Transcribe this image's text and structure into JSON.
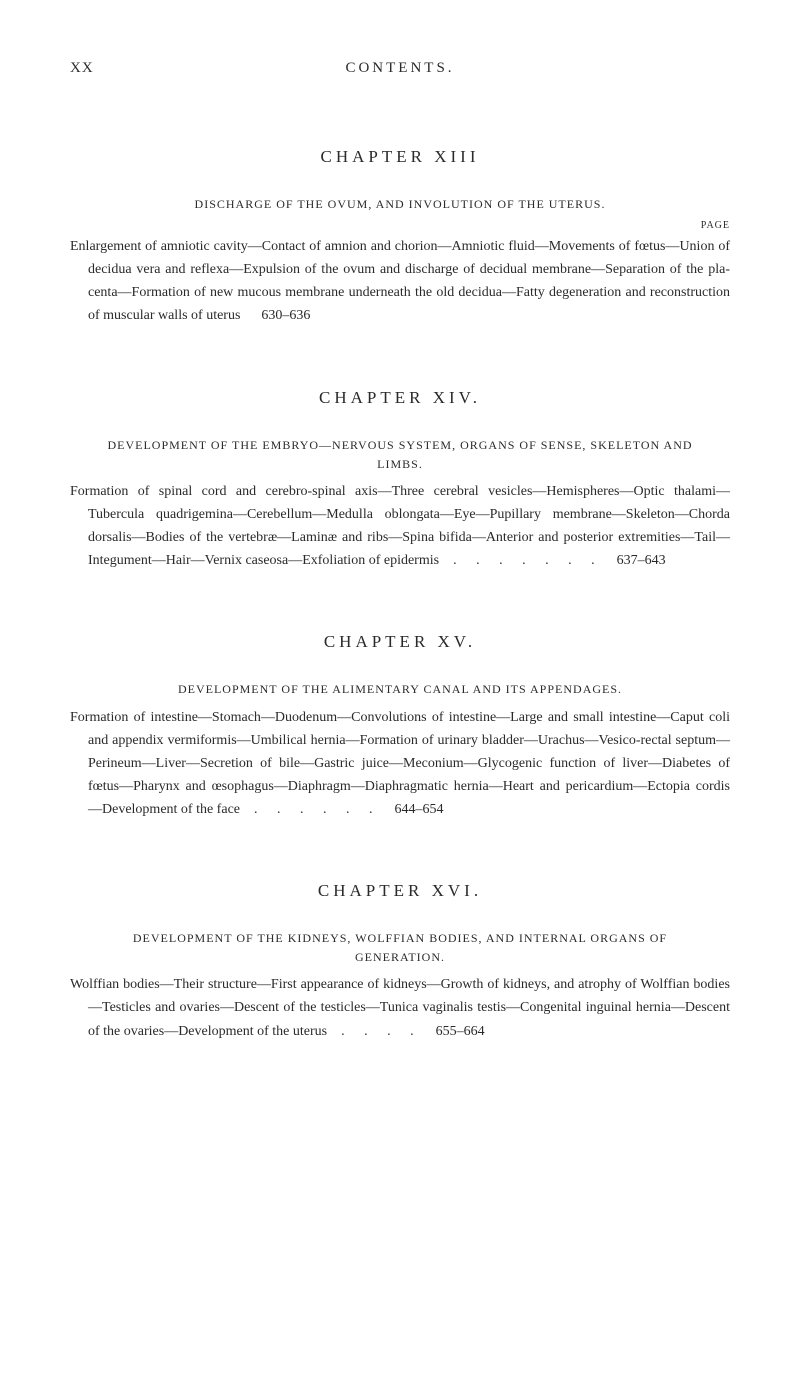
{
  "header": {
    "page_number": "XX",
    "label": "CONTENTS."
  },
  "page_label": "PAGE",
  "chapters": [
    {
      "title": "CHAPTER XIII",
      "subtitle": "DISCHARGE OF THE OVUM, AND INVOLUTION OF THE UTERUS.",
      "body": "Enlargement of amniotic cavity—Contact of amnion and chorion—Amniotic fluid—Movements of fœtus—Union of decidua vera and reflexa—Expulsion of the ovum and discharge of decidual membrane—Separation of the pla­centa—Formation of new mucous membrane underneath the old decidua—Fatty degeneration and reconstruction of muscular walls of uterus",
      "range": "630–636"
    },
    {
      "title": "CHAPTER XIV.",
      "subtitle": "DEVELOPMENT OF THE EMBRYO—NERVOUS SYSTEM, ORGANS OF SENSE, SKELETON AND LIMBS.",
      "body": "Formation of spinal cord and cerebro-spinal axis—Three cerebral vesicles—Hemispheres—Optic thalami—Tubercula quadrigemina—Cerebellum—Me­dulla oblongata—Eye—Pupillary membrane—Skeleton—Chorda dorsalis—Bodies of the vertebræ—Laminæ and ribs—Spina bifida—Anterior and pos­terior extremities—Tail—Integument—Hair—Vernix caseosa—Exfoliation of epidermis",
      "dots": ".     .     .     .     .     .     .",
      "range": "637–643"
    },
    {
      "title": "CHAPTER XV.",
      "subtitle": "DEVELOPMENT OF THE ALIMENTARY CANAL AND ITS APPENDAGES.",
      "body": "Formation of intestine—Stomach—Duodenum—Convolutions of intestine—Large and small intestine—Caput coli and appendix vermiformis—Umbi­lical hernia—Formation of urinary bladder—Urachus—Vesico-rectal septum—Perineum—Liver—Secretion of bile—Gastric juice—Meconium—Glyco­genic function of liver—Diabetes of fœtus—Pharynx and œsophagus—Dia­phragm—Diaphragmatic hernia—Heart and pericardium—Ectopia cordis—Development of the face",
      "dots": ".     .     .     .     .     .",
      "range": "644–654"
    },
    {
      "title": "CHAPTER XVI.",
      "subtitle": "DEVELOPMENT OF THE KIDNEYS, WOLFFIAN BODIES, AND INTERNAL ORGANS OF GENERATION.",
      "body": "Wolffian bodies—Their structure—First appearance of kidneys—Growth of kidneys, and atrophy of Wolffian bodies—Testicles and ovaries—Descent of the testicles—Tunica vaginalis testis—Congenital inguinal hernia—Descent of the ovaries—Development of the uterus",
      "dots": ".     .     .     .",
      "range": "655–664"
    }
  ]
}
